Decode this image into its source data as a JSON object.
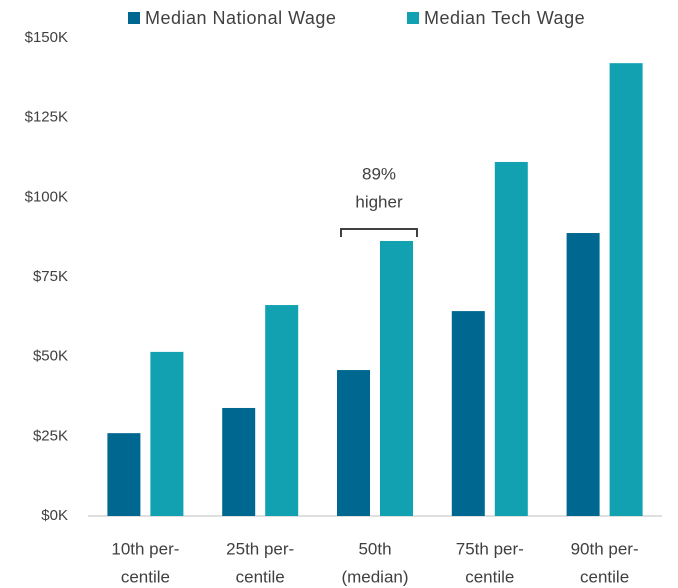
{
  "chart_data": {
    "type": "bar",
    "categories": [
      [
        "10th per-",
        "centile"
      ],
      [
        "25th per-",
        "centile"
      ],
      [
        "50th",
        "(median)"
      ],
      [
        "75th per-",
        "centile"
      ],
      [
        "90th per-",
        "centile"
      ]
    ],
    "series": [
      {
        "name": "Median National Wage",
        "color": "#006890",
        "values": [
          26.0,
          33.9,
          45.8,
          64.3,
          88.8
        ]
      },
      {
        "name": "Median Tech Wage",
        "color": "#12a1b1",
        "values": [
          51.5,
          66.2,
          86.3,
          111.1,
          142.1
        ]
      }
    ],
    "ylim": [
      0,
      150
    ],
    "yticks": [
      {
        "value": 0,
        "label": "$0K"
      },
      {
        "value": 25,
        "label": "$25K"
      },
      {
        "value": 50,
        "label": "$50K"
      },
      {
        "value": 75,
        "label": "$75K"
      },
      {
        "value": 100,
        "label": "$100K"
      },
      {
        "value": 125,
        "label": "$125K"
      },
      {
        "value": 150,
        "label": "$150K"
      }
    ],
    "legend": "top",
    "annotation": {
      "category": 2,
      "text": [
        "89%",
        "higher"
      ]
    }
  }
}
